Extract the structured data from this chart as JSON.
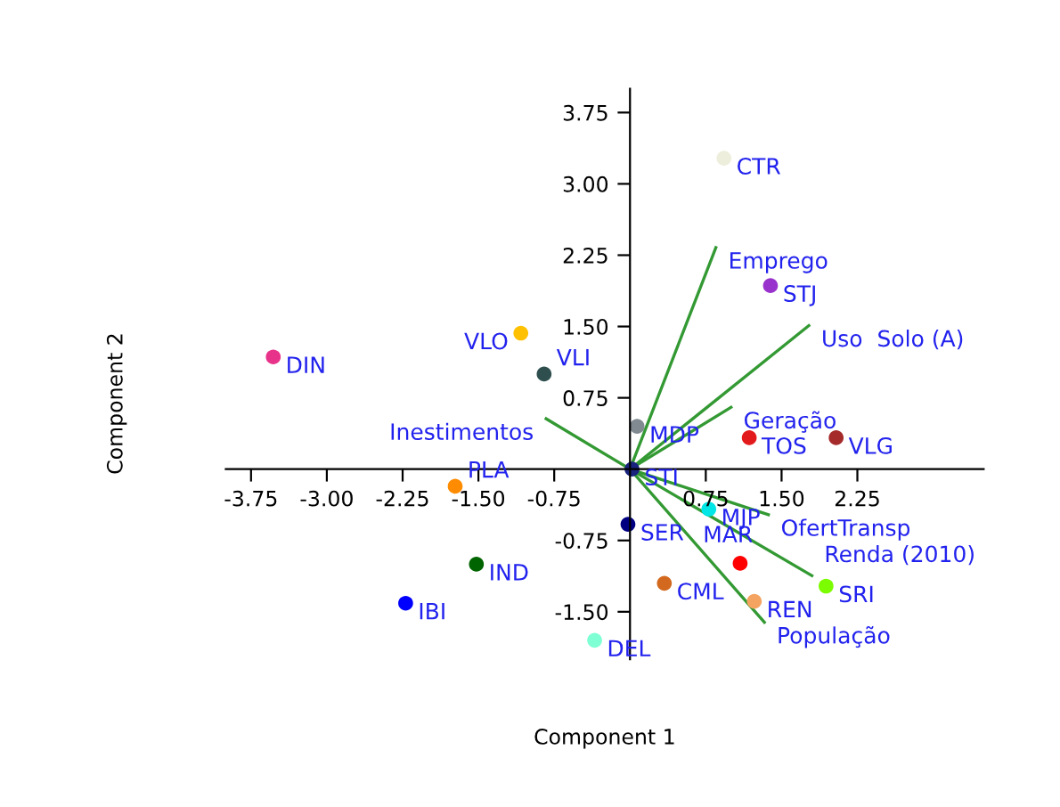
{
  "chart_data": {
    "type": "scatter",
    "xlabel": "Component 1",
    "ylabel": "Component 2",
    "xlim": [
      -4.0,
      3.5
    ],
    "ylim": [
      -2.0,
      4.0
    ],
    "xticks": [
      {
        "value": -3.75,
        "label": "-3.75"
      },
      {
        "value": -3.0,
        "label": "-3.00"
      },
      {
        "value": -2.25,
        "label": "-2.25"
      },
      {
        "value": -1.5,
        "label": "-1.50"
      },
      {
        "value": -0.75,
        "label": "-0.75"
      },
      {
        "value": 0.75,
        "label": "0.75"
      },
      {
        "value": 1.5,
        "label": "1.50"
      },
      {
        "value": 2.25,
        "label": "2.25"
      }
    ],
    "yticks": [
      {
        "value": 3.75,
        "label": "3.75"
      },
      {
        "value": 3.0,
        "label": "3.00"
      },
      {
        "value": 2.25,
        "label": "2.25"
      },
      {
        "value": 1.5,
        "label": "1.50"
      },
      {
        "value": 0.75,
        "label": "0.75"
      },
      {
        "value": -0.75,
        "label": "-0.75"
      },
      {
        "value": -1.5,
        "label": "-1.50"
      }
    ],
    "grid": false,
    "legend": false,
    "series": [
      {
        "marker": "circle",
        "x": [
          -3.53,
          -1.08,
          -0.85,
          0.07,
          0.93,
          1.39,
          1.18,
          2.04,
          0.02,
          -1.73,
          -1.52,
          -2.22,
          -0.35,
          -0.02,
          0.34,
          1.09,
          1.23,
          1.94,
          0.78
        ],
        "values": [
          1.18,
          1.43,
          1.0,
          0.45,
          3.27,
          1.93,
          0.33,
          0.33,
          0.0,
          -0.18,
          -1.0,
          -1.41,
          -1.8,
          -0.58,
          -1.2,
          -0.99,
          -1.39,
          -1.23,
          -0.42
        ],
        "colors": [
          "#e8338a",
          "#ffc000",
          "#2f4f4f",
          "#808a90",
          "#eeeedc",
          "#9932cc",
          "#e31a1c",
          "#a52a2a",
          "#1a237e",
          "#ff8c00",
          "#006400",
          "#0000ff",
          "#7fffd4",
          "#000080",
          "#d2691e",
          "#ff0000",
          "#f4a460",
          "#7cfc00",
          "#00e5e5"
        ]
      },
      {
        "type": "line",
        "name": "Emprego",
        "color": "#339933",
        "x": [
          0,
          0.85
        ],
        "values": [
          0,
          2.33
        ]
      },
      {
        "type": "line",
        "name": "Uso  Solo (A)",
        "color": "#339933",
        "x": [
          0,
          1.77
        ],
        "values": [
          0,
          1.51
        ]
      },
      {
        "type": "line",
        "name": "Geração",
        "color": "#339933",
        "x": [
          0,
          1.0
        ],
        "values": [
          0,
          0.65
        ]
      },
      {
        "type": "line",
        "name": "Inestimentos",
        "color": "#339933",
        "x": [
          0,
          -0.83
        ],
        "values": [
          0,
          0.53
        ]
      },
      {
        "type": "line",
        "name": "OfertTransp",
        "color": "#339933",
        "x": [
          0,
          1.37
        ],
        "values": [
          0,
          -0.48
        ]
      },
      {
        "type": "line",
        "name": "Renda (2010)",
        "color": "#339933",
        "x": [
          0,
          1.8
        ],
        "values": [
          0,
          -1.12
        ]
      },
      {
        "type": "line",
        "name": "População",
        "color": "#339933",
        "x": [
          0,
          1.33
        ],
        "values": [
          0,
          -1.61
        ]
      }
    ],
    "annotations": [
      {
        "text": "DIN",
        "x": -3.53,
        "y": 1.18
      },
      {
        "text": "VLO",
        "x": -1.08,
        "y": 1.43
      },
      {
        "text": "VLI",
        "x": -0.85,
        "y": 1.0
      },
      {
        "text": "MDP",
        "x": 0.07,
        "y": 0.45
      },
      {
        "text": "CTR",
        "x": 0.93,
        "y": 3.27
      },
      {
        "text": "STJ",
        "x": 1.39,
        "y": 1.93
      },
      {
        "text": "TOS",
        "x": 1.18,
        "y": 0.33
      },
      {
        "text": "VLG",
        "x": 2.04,
        "y": 0.33
      },
      {
        "text": "STI",
        "x": 0.02,
        "y": 0.0
      },
      {
        "text": "PLA",
        "x": -1.73,
        "y": -0.18
      },
      {
        "text": "IND",
        "x": -1.52,
        "y": -1.0
      },
      {
        "text": "IBI",
        "x": -2.22,
        "y": -1.41
      },
      {
        "text": "DEL",
        "x": -0.35,
        "y": -1.8
      },
      {
        "text": "SER",
        "x": -0.02,
        "y": -0.58
      },
      {
        "text": "CML",
        "x": 0.34,
        "y": -1.2
      },
      {
        "text": "REN",
        "x": 1.23,
        "y": -1.39
      },
      {
        "text": "SRI",
        "x": 1.94,
        "y": -1.23
      },
      {
        "text": "MJP",
        "x": 0.78,
        "y": -0.42
      },
      {
        "text": "MAR",
        "x": 0.6,
        "y": -0.6
      }
    ]
  }
}
